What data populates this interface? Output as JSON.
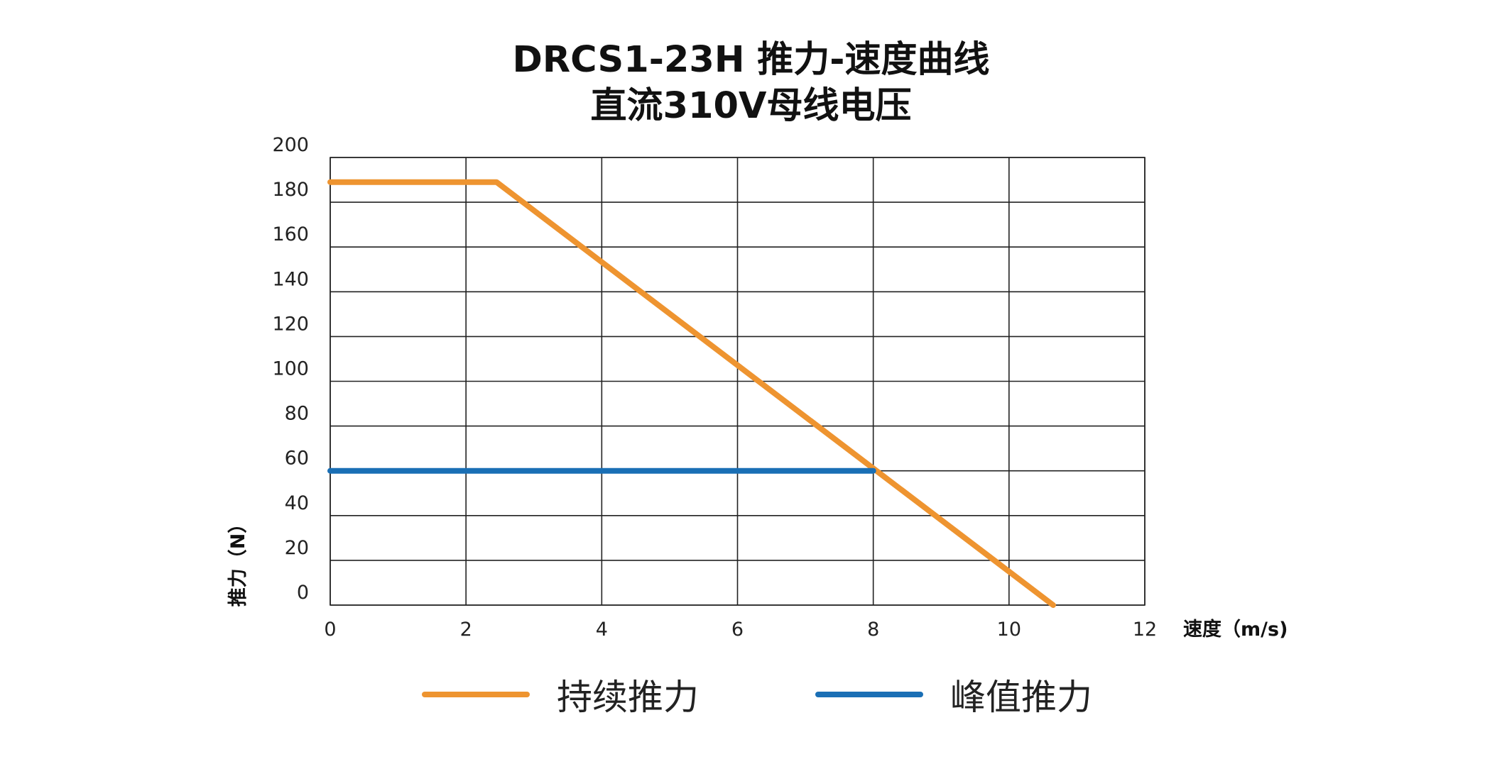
{
  "title": {
    "line1": "DRCS1-23H 推力-速度曲线",
    "line2": "直流310V母线电压"
  },
  "colors": {
    "continuous": "#EE9430",
    "peak": "#1A6FB5",
    "grid": "#222222"
  },
  "chart_data": {
    "type": "line",
    "title": "DRCS1-23H 推力-速度曲线",
    "subtitle": "直流310V母线电压",
    "xlabel": "速度（m/s)",
    "ylabel": "推力（N）",
    "xlim": [
      0,
      12
    ],
    "ylim": [
      0,
      200
    ],
    "xticks": [
      0,
      2,
      4,
      6,
      8,
      10,
      12
    ],
    "yticks": [
      0,
      20,
      40,
      60,
      80,
      100,
      120,
      140,
      160,
      180,
      200
    ],
    "grid": true,
    "legend_position": "bottom",
    "series": [
      {
        "name": "持续推力",
        "color": "#EE9430",
        "points": [
          [
            0,
            189
          ],
          [
            2.45,
            189
          ],
          [
            10.65,
            0
          ]
        ]
      },
      {
        "name": "峰值推力",
        "color": "#1A6FB5",
        "points": [
          [
            0,
            60
          ],
          [
            8,
            60
          ]
        ]
      }
    ]
  }
}
